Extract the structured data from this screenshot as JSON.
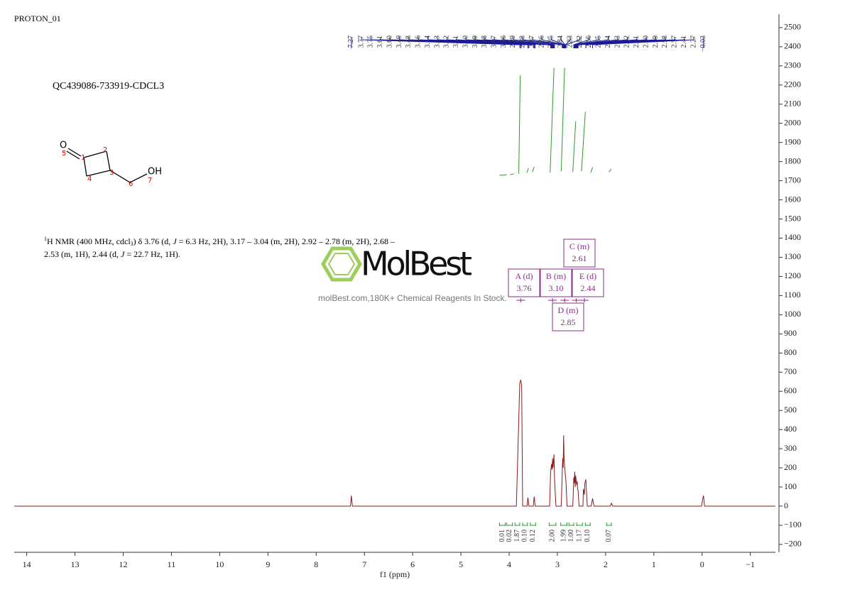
{
  "header": {
    "experiment": "PROTON_01",
    "sample": "QC439086-733919-CDCL3"
  },
  "structure": {
    "atoms": [
      "O",
      "5",
      "1",
      "2",
      "3",
      "4",
      "6",
      "7",
      "OH"
    ]
  },
  "description": {
    "line1": [
      "1",
      "H NMR (400 MHz, cdcl",
      "3",
      ") δ 3.76 (d, ",
      "J",
      " = 6.3 Hz, 2H), 3.17 – 3.04 (m, 2H), 2.92 – 2.78 (m, 2H), 2.68 –"
    ],
    "line2": [
      "2.53 (m, 1H), 2.44 (d, ",
      "J",
      " = 22.7 Hz, 1H)."
    ]
  },
  "watermark": {
    "brand": "MolBest",
    "tagline": "molBest.com,180K+ Chemical Reagents In Stock."
  },
  "chart_data": {
    "type": "line",
    "xlabel": "f1 (ppm)",
    "xlim": [
      14.26,
      -1.52
    ],
    "ylim": [
      -241,
      2570
    ],
    "xticks": [
      14,
      13,
      12,
      11,
      10,
      9,
      8,
      7,
      6,
      5,
      4,
      3,
      2,
      1,
      0,
      {
        "value": -1,
        "label": "−1"
      }
    ],
    "yticks": [
      {
        "value": -200,
        "label": "−200"
      },
      {
        "value": -100,
        "label": "−100"
      },
      0,
      100,
      200,
      300,
      400,
      500,
      600,
      700,
      800,
      900,
      1000,
      1100,
      1200,
      1300,
      1400,
      1500,
      1600,
      1700,
      1800,
      1900,
      2000,
      2100,
      2200,
      2300,
      2400,
      2500
    ],
    "series": [
      {
        "color": "#8b1a1a",
        "x": [
          14.26,
          7.29,
          7.27,
          7.25,
          3.85,
          3.78,
          3.76,
          3.74,
          3.72,
          3.63,
          3.61,
          3.59,
          3.5,
          3.48,
          3.46,
          3.16,
          3.14,
          3.12,
          3.11,
          3.1,
          3.09,
          3.07,
          3.06,
          3.03,
          2.92,
          2.89,
          2.88,
          2.87,
          2.86,
          2.85,
          2.84,
          2.82,
          2.8,
          2.68,
          2.66,
          2.65,
          2.64,
          2.63,
          2.62,
          2.61,
          2.6,
          2.59,
          2.58,
          2.57,
          2.55,
          2.47,
          2.46,
          2.44,
          2.43,
          2.41,
          2.38,
          2.3,
          2.27,
          2.24,
          1.9,
          1.88,
          1.85,
          0.01,
          -0.01,
          -0.03,
          -0.05,
          -1.52
        ],
        "values": [
          0,
          0,
          55,
          0,
          0,
          640,
          660,
          630,
          0,
          0,
          45,
          0,
          0,
          50,
          0,
          0,
          180,
          220,
          190,
          250,
          200,
          270,
          150,
          0,
          0,
          250,
          200,
          370,
          240,
          210,
          180,
          120,
          0,
          0,
          150,
          120,
          180,
          100,
          160,
          130,
          110,
          130,
          90,
          80,
          0,
          0,
          90,
          60,
          120,
          140,
          0,
          0,
          40,
          0,
          0,
          15,
          0,
          0,
          35,
          55,
          0,
          0
        ]
      }
    ],
    "integral_curve": {
      "color": "#2e9a2e",
      "segments": [
        {
          "x": [
            4.2,
            4.05
          ],
          "values": [
            1728,
            1731
          ]
        },
        {
          "x": [
            3.98,
            3.9
          ],
          "values": [
            1732,
            1736
          ]
        },
        {
          "x": [
            3.8,
            3.77
          ],
          "values": [
            1736,
            2250
          ]
        },
        {
          "x": [
            3.63,
            3.6
          ],
          "values": [
            1742,
            1765
          ]
        },
        {
          "x": [
            3.52,
            3.48
          ],
          "values": [
            1746,
            1772
          ]
        },
        {
          "x": [
            3.15,
            3.07
          ],
          "values": [
            1742,
            2290
          ]
        },
        {
          "x": [
            2.92,
            2.85
          ],
          "values": [
            1750,
            2290
          ]
        },
        {
          "x": [
            2.68,
            2.62
          ],
          "values": [
            1746,
            2010
          ]
        },
        {
          "x": [
            2.5,
            2.42
          ],
          "values": [
            1750,
            2060
          ]
        },
        {
          "x": [
            2.31,
            2.27
          ],
          "values": [
            1742,
            1770
          ]
        },
        {
          "x": [
            1.93,
            1.88
          ],
          "values": [
            1745,
            1762
          ]
        }
      ]
    },
    "peak_labels": [
      7.27,
      3.77,
      3.75,
      3.61,
      {
        "value": 3.6,
        "label": "3.60"
      },
      3.49,
      3.48,
      3.46,
      3.14,
      3.13,
      3.12,
      3.11,
      {
        "value": 3.1,
        "label": "3.10"
      },
      3.09,
      3.08,
      3.07,
      3.06,
      2.89,
      2.88,
      2.87,
      2.86,
      2.85,
      2.84,
      2.83,
      2.82,
      2.66,
      2.65,
      2.64,
      2.63,
      2.62,
      2.61,
      {
        "value": 2.6,
        "label": "2.60"
      },
      2.59,
      2.58,
      2.57,
      2.41,
      2.27,
      {
        "value": -0.03,
        "label": "−0.03"
      }
    ],
    "integrals": [
      {
        "range": [
          4.2,
          4.08
        ],
        "value": 0.01
      },
      {
        "range": [
          4.05,
          3.93
        ],
        "value": 0.02
      },
      {
        "range": [
          3.88,
          3.78
        ],
        "value": 1.87
      },
      {
        "range": [
          3.72,
          3.62
        ],
        "value": {
          "value": 0.1,
          "label": "0.10"
        }
      },
      {
        "range": [
          3.56,
          3.45
        ],
        "value": 0.12
      },
      {
        "range": [
          3.17,
          3.03
        ],
        "value": {
          "value": 2,
          "label": "2.00"
        }
      },
      {
        "range": [
          2.93,
          2.8
        ],
        "value": 1.99
      },
      {
        "range": [
          2.76,
          2.66
        ],
        "value": {
          "value": 1,
          "label": "1.00"
        }
      },
      {
        "range": [
          2.6,
          2.48
        ],
        "value": 1.17
      },
      {
        "range": [
          2.42,
          2.32
        ],
        "value": {
          "value": 0.1,
          "label": "0.10"
        }
      },
      {
        "range": [
          1.98,
          1.88
        ],
        "value": 0.07
      }
    ],
    "multiplets": [
      {
        "name": "A (d)",
        "shift": 3.76
      },
      {
        "name": "B (m)",
        "shift": {
          "value": 3.1,
          "label": "3.10"
        }
      },
      {
        "name": "C (m)",
        "shift": 2.61
      },
      {
        "name": "D (m)",
        "shift": 2.85
      },
      {
        "name": "E (d)",
        "shift": 2.44
      }
    ]
  }
}
